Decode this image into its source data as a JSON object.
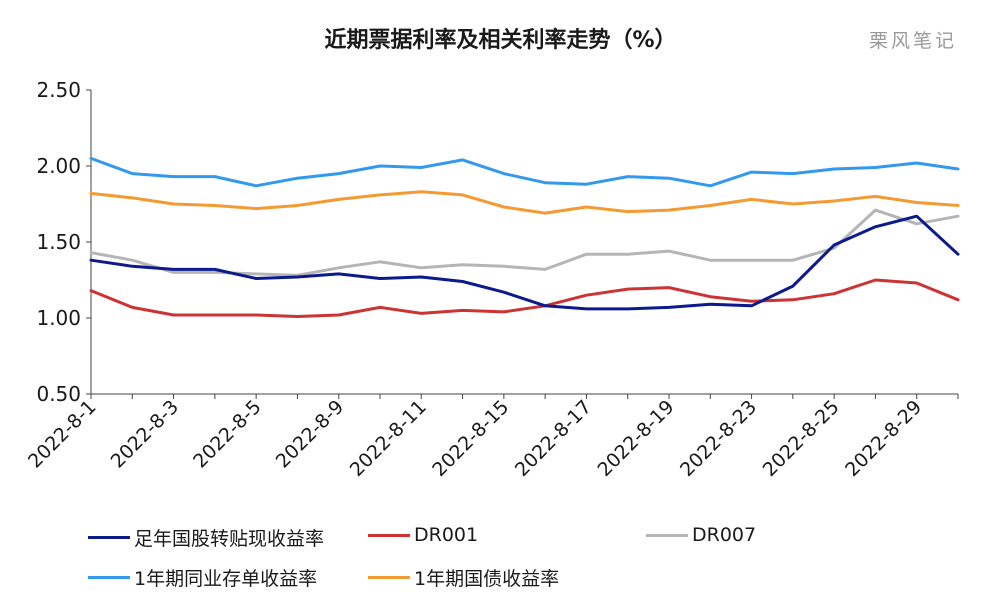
{
  "title": "近期票据利率及相关利率走势（%）",
  "watermark": "栗风笔记",
  "colors": {
    "s1": "#0b1a8c",
    "s2": "#cc3333",
    "s3": "#b5b5b5",
    "s4": "#3399ee",
    "s5": "#f39a32"
  },
  "chart_data": {
    "type": "line",
    "x": [
      "2022-8-1",
      "2022-8-2",
      "2022-8-3",
      "2022-8-4",
      "2022-8-5",
      "2022-8-8",
      "2022-8-9",
      "2022-8-10",
      "2022-8-11",
      "2022-8-12",
      "2022-8-15",
      "2022-8-16",
      "2022-8-17",
      "2022-8-18",
      "2022-8-19",
      "2022-8-22",
      "2022-8-23",
      "2022-8-24",
      "2022-8-25",
      "2022-8-26",
      "2022-8-29",
      "2022-8-30"
    ],
    "x_tick_labels": [
      "2022-8-1",
      "2022-8-3",
      "2022-8-5",
      "2022-8-9",
      "2022-8-11",
      "2022-8-15",
      "2022-8-17",
      "2022-8-19",
      "2022-8-23",
      "2022-8-25",
      "2022-8-29"
    ],
    "ylim": [
      0.5,
      2.5
    ],
    "y_ticks": [
      "0.50",
      "1.00",
      "1.50",
      "2.00",
      "2.50"
    ],
    "grid": false,
    "legend": "bottom",
    "series": [
      {
        "name": "足年国股转贴现收益率",
        "values": [
          1.38,
          1.34,
          1.32,
          1.32,
          1.26,
          1.27,
          1.29,
          1.26,
          1.27,
          1.24,
          1.17,
          1.08,
          1.06,
          1.06,
          1.07,
          1.09,
          1.08,
          1.21,
          1.48,
          1.6,
          1.67,
          1.42
        ]
      },
      {
        "name": "DR001",
        "values": [
          1.18,
          1.07,
          1.02,
          1.02,
          1.02,
          1.01,
          1.02,
          1.07,
          1.03,
          1.05,
          1.04,
          1.08,
          1.15,
          1.19,
          1.2,
          1.14,
          1.11,
          1.12,
          1.16,
          1.25,
          1.23,
          1.12
        ]
      },
      {
        "name": "DR007",
        "values": [
          1.43,
          1.38,
          1.3,
          1.3,
          1.29,
          1.28,
          1.33,
          1.37,
          1.33,
          1.35,
          1.34,
          1.32,
          1.42,
          1.42,
          1.44,
          1.38,
          1.38,
          1.38,
          1.46,
          1.71,
          1.62,
          1.67
        ]
      },
      {
        "name": "1年期同业存单收益率",
        "values": [
          2.05,
          1.95,
          1.93,
          1.93,
          1.87,
          1.92,
          1.95,
          2.0,
          1.99,
          2.04,
          1.95,
          1.89,
          1.88,
          1.93,
          1.92,
          1.87,
          1.96,
          1.95,
          1.98,
          1.99,
          2.02,
          1.98
        ]
      },
      {
        "name": "1年期国债收益率",
        "values": [
          1.82,
          1.79,
          1.75,
          1.74,
          1.72,
          1.74,
          1.78,
          1.81,
          1.83,
          1.81,
          1.73,
          1.69,
          1.73,
          1.7,
          1.71,
          1.74,
          1.78,
          1.75,
          1.77,
          1.8,
          1.76,
          1.74
        ]
      }
    ]
  }
}
